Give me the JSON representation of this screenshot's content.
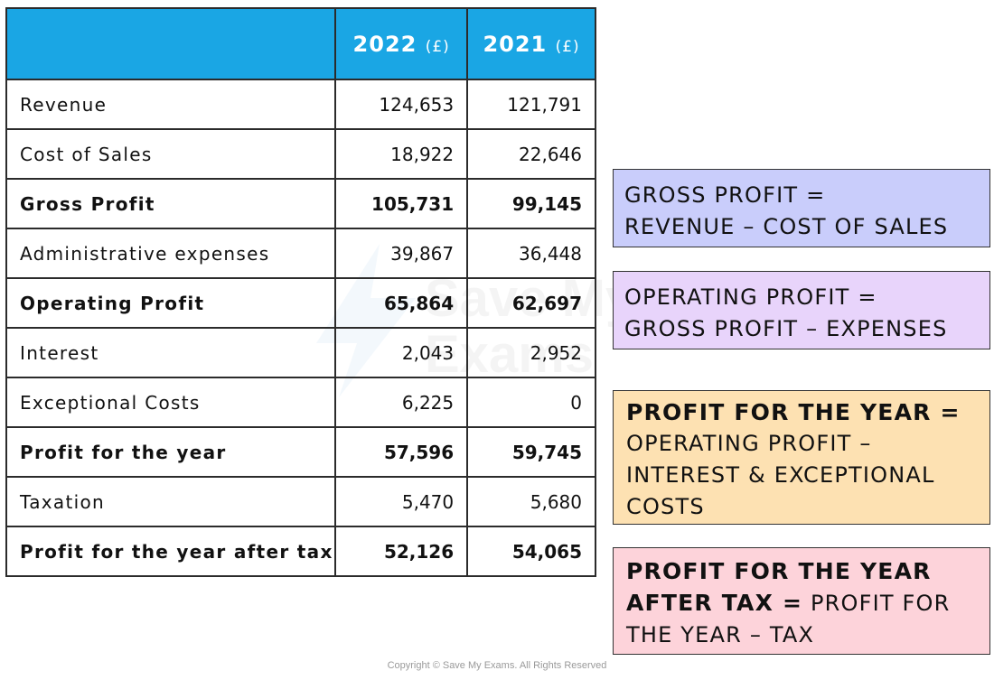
{
  "table": {
    "headers": {
      "col1": {
        "year": "2022",
        "unit": "(£)"
      },
      "col2": {
        "year": "2021",
        "unit": "(£)"
      }
    },
    "rows": [
      {
        "label": "Revenue",
        "v2022": "124,653",
        "v2021": "121,791",
        "bold": false
      },
      {
        "label": "Cost of Sales",
        "v2022": "18,922",
        "v2021": "22,646",
        "bold": false
      },
      {
        "label": "Gross Profit",
        "v2022": "105,731",
        "v2021": "99,145",
        "bold": true
      },
      {
        "label": "Administrative expenses",
        "v2022": "39,867",
        "v2021": "36,448",
        "bold": false
      },
      {
        "label": "Operating Profit",
        "v2022": "65,864",
        "v2021": "62,697",
        "bold": true
      },
      {
        "label": "Interest",
        "v2022": "2,043",
        "v2021": "2,952",
        "bold": false
      },
      {
        "label": "Exceptional Costs",
        "v2022": "6,225",
        "v2021": "0",
        "bold": false
      },
      {
        "label": "Profit for the year",
        "v2022": "57,596",
        "v2021": "59,745",
        "bold": true
      },
      {
        "label": "Taxation",
        "v2022": "5,470",
        "v2021": "5,680",
        "bold": false
      },
      {
        "label": "Profit for the year after tax",
        "v2022": "52,126",
        "v2021": "54,065",
        "bold": true
      }
    ]
  },
  "formulas": {
    "gross": {
      "heading": "GROSS PROFIT =",
      "body": "REVENUE – COST OF SALES"
    },
    "operating": {
      "heading": "OPERATING PROFIT =",
      "body": "GROSS PROFIT – EXPENSES"
    },
    "profit_year": {
      "heading": "PROFIT FOR THE YEAR =",
      "line1": "OPERATING PROFIT –",
      "line2": "INTEREST & EXCEPTIONAL",
      "line3": "COSTS"
    },
    "after_tax": {
      "heading1": "PROFIT FOR THE YEAR",
      "heading2": "AFTER TAX =",
      "body1": " PROFIT FOR",
      "body2": "THE YEAR – TAX"
    }
  },
  "watermark": {
    "line1": "Save My",
    "line2": "Exams"
  },
  "copyright": "Copyright © Save My Exams. All Rights Reserved",
  "colors": {
    "header_blue": "#1aa6e4",
    "gross_box": "#c9cdfb",
    "operating_box": "#e8d4fb",
    "profit_box": "#fde1b2",
    "after_tax_box": "#fdd3da"
  }
}
